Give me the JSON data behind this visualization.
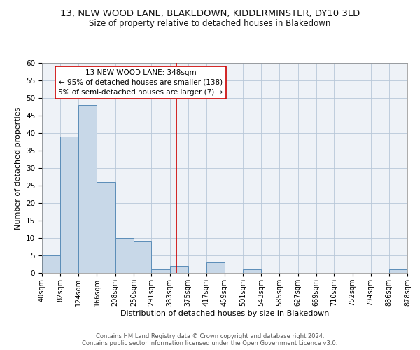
{
  "title": "13, NEW WOOD LANE, BLAKEDOWN, KIDDERMINSTER, DY10 3LD",
  "subtitle": "Size of property relative to detached houses in Blakedown",
  "xlabel": "Distribution of detached houses by size in Blakedown",
  "ylabel": "Number of detached properties",
  "bin_edges": [
    40,
    82,
    124,
    166,
    208,
    250,
    291,
    333,
    375,
    417,
    459,
    501,
    543,
    585,
    627,
    669,
    710,
    752,
    794,
    836,
    878
  ],
  "bin_labels": [
    "40sqm",
    "82sqm",
    "124sqm",
    "166sqm",
    "208sqm",
    "250sqm",
    "291sqm",
    "333sqm",
    "375sqm",
    "417sqm",
    "459sqm",
    "501sqm",
    "543sqm",
    "585sqm",
    "627sqm",
    "669sqm",
    "710sqm",
    "752sqm",
    "794sqm",
    "836sqm",
    "878sqm"
  ],
  "counts": [
    5,
    39,
    48,
    26,
    10,
    9,
    1,
    2,
    0,
    3,
    0,
    1,
    0,
    0,
    0,
    0,
    0,
    0,
    0,
    1
  ],
  "bar_color": "#c8d8e8",
  "bar_edge_color": "#5b8db8",
  "property_line_x": 348,
  "property_line_color": "#cc0000",
  "annotation_line1": "13 NEW WOOD LANE: 348sqm",
  "annotation_line2": "← 95% of detached houses are smaller (138)",
  "annotation_line3": "5% of semi-detached houses are larger (7) →",
  "annotation_box_color": "#ffffff",
  "annotation_box_edge_color": "#cc0000",
  "ylim": [
    0,
    60
  ],
  "yticks": [
    0,
    5,
    10,
    15,
    20,
    25,
    30,
    35,
    40,
    45,
    50,
    55,
    60
  ],
  "footer1": "Contains HM Land Registry data © Crown copyright and database right 2024.",
  "footer2": "Contains public sector information licensed under the Open Government Licence v3.0.",
  "background_color": "#eef2f7",
  "title_fontsize": 9.5,
  "subtitle_fontsize": 8.5,
  "annotation_fontsize": 7.5,
  "xlabel_fontsize": 8,
  "ylabel_fontsize": 8,
  "tick_fontsize": 7,
  "ytick_fontsize": 7.5,
  "footer_fontsize": 6
}
